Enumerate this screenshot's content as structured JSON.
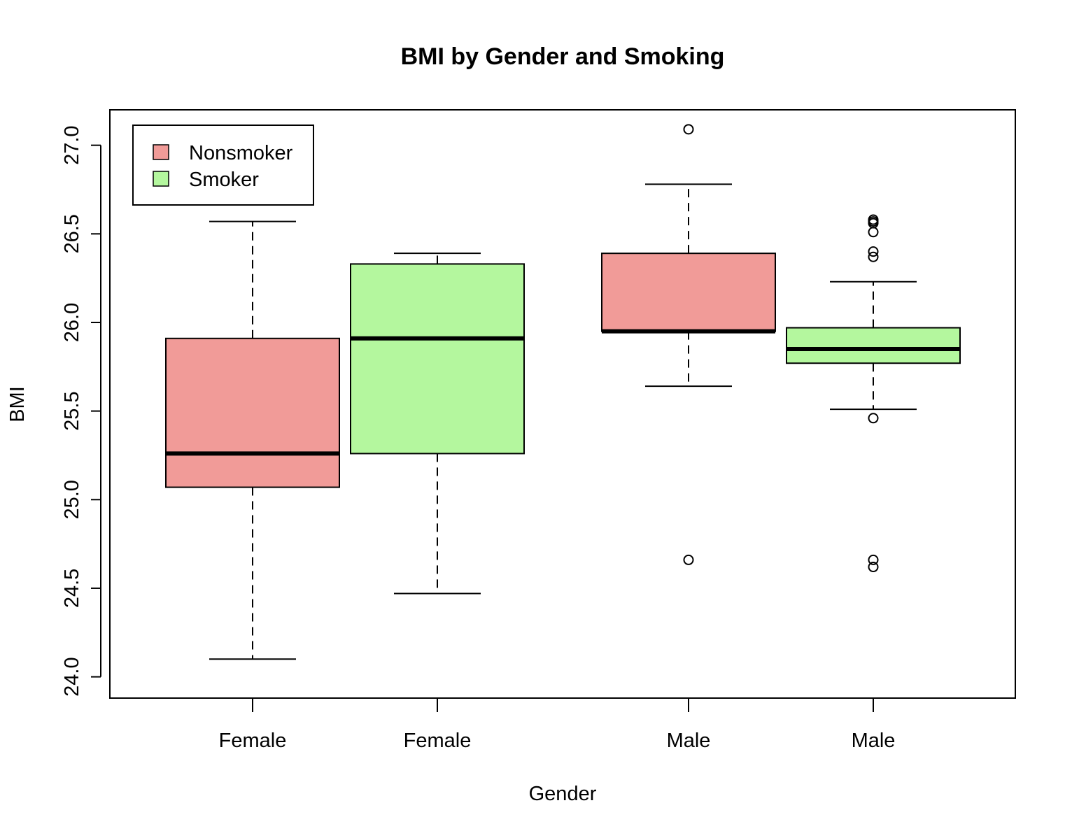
{
  "chart_data": {
    "type": "boxplot",
    "title": "BMI by Gender and Smoking",
    "xlabel": "Gender",
    "ylabel": "BMI",
    "ylim": [
      23.88,
      27.2
    ],
    "yticks": [
      24.0,
      24.5,
      25.0,
      25.5,
      26.0,
      26.5,
      27.0
    ],
    "ytick_labels": [
      "24.0",
      "24.5",
      "25.0",
      "25.5",
      "26.0",
      "26.5",
      "27.0"
    ],
    "grid": false,
    "legend": {
      "placement": "top-left",
      "entries": [
        {
          "label": "Nonsmoker",
          "color": "#f19b98"
        },
        {
          "label": "Smoker",
          "color": "#b4f79e"
        }
      ]
    },
    "boxes": [
      {
        "category": "Female",
        "group": "Nonsmoker",
        "color": "#f19b98",
        "whisker_low": 24.1,
        "q1": 25.07,
        "median": 25.26,
        "q3": 25.91,
        "whisker_high": 26.57,
        "outliers": []
      },
      {
        "category": "Female",
        "group": "Smoker",
        "color": "#b4f79e",
        "whisker_low": 24.47,
        "q1": 25.26,
        "median": 25.91,
        "q3": 26.33,
        "whisker_high": 26.39,
        "outliers": []
      },
      {
        "category": "Male",
        "group": "Nonsmoker",
        "color": "#f19b98",
        "whisker_low": 25.64,
        "q1": 25.95,
        "median": 25.95,
        "q3": 26.39,
        "whisker_high": 26.78,
        "outliers": [
          27.09,
          24.66
        ]
      },
      {
        "category": "Male",
        "group": "Smoker",
        "color": "#b4f79e",
        "whisker_low": 25.51,
        "q1": 25.77,
        "median": 25.85,
        "q3": 25.97,
        "whisker_high": 26.23,
        "outliers": [
          26.58,
          26.57,
          26.56,
          26.51,
          26.4,
          26.37,
          25.46,
          24.66,
          24.62
        ]
      }
    ]
  }
}
